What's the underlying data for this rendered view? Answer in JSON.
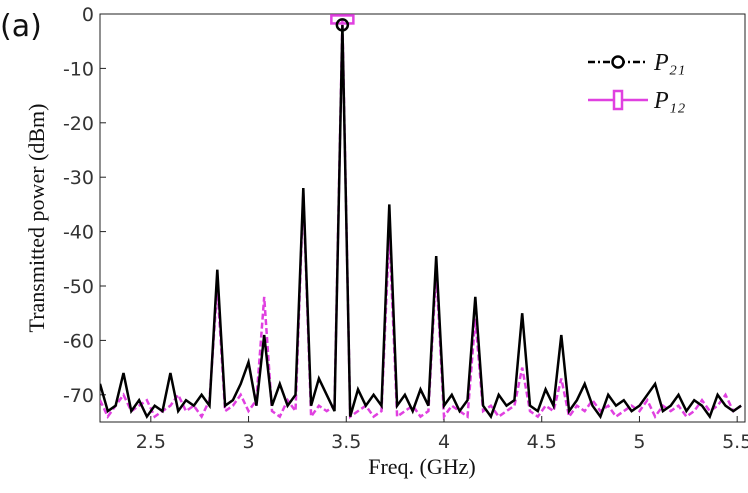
{
  "chart_data": {
    "type": "line",
    "annotation": "(a)",
    "x_label": "Freq. (GHz)",
    "y_label": "Transmitted power (dBm)",
    "legend": "upper right",
    "xlim": [
      2.24,
      5.54
    ],
    "ylim": [
      -75,
      0
    ],
    "xticks": [
      2.5,
      3,
      3.5,
      4,
      4.5,
      5,
      5.5
    ],
    "yticks": [
      -70,
      -60,
      -50,
      -40,
      -30,
      -20,
      -10,
      0
    ],
    "x": [
      2.24,
      2.28,
      2.32,
      2.36,
      2.4,
      2.44,
      2.48,
      2.52,
      2.56,
      2.6,
      2.64,
      2.68,
      2.72,
      2.76,
      2.8,
      2.84,
      2.88,
      2.92,
      2.96,
      3.0,
      3.04,
      3.08,
      3.12,
      3.16,
      3.2,
      3.24,
      3.28,
      3.32,
      3.36,
      3.4,
      3.44,
      3.48,
      3.52,
      3.56,
      3.6,
      3.64,
      3.68,
      3.72,
      3.76,
      3.8,
      3.84,
      3.88,
      3.92,
      3.96,
      4.0,
      4.04,
      4.08,
      4.12,
      4.16,
      4.2,
      4.24,
      4.28,
      4.32,
      4.36,
      4.4,
      4.44,
      4.48,
      4.52,
      4.56,
      4.6,
      4.64,
      4.68,
      4.72,
      4.76,
      4.8,
      4.84,
      4.88,
      4.92,
      4.96,
      5.0,
      5.04,
      5.08,
      5.12,
      5.16,
      5.2,
      5.24,
      5.28,
      5.32,
      5.36,
      5.4,
      5.44,
      5.48,
      5.52
    ],
    "series": [
      {
        "name": "P₂₁",
        "color": "#000000",
        "marker": "circle",
        "values": [
          -68,
          -73,
          -72,
          -66,
          -73,
          -71,
          -74,
          -72,
          -73,
          -66,
          -73,
          -71,
          -72,
          -70,
          -72,
          -47,
          -72,
          -71,
          -68,
          -64,
          -72,
          -59,
          -72,
          -68,
          -72,
          -70,
          -32,
          -72,
          -67,
          -70,
          -73,
          -2,
          -74,
          -69,
          -72,
          -70,
          -72,
          -35,
          -72,
          -70,
          -73,
          -69,
          -72,
          -44.5,
          -72,
          -70,
          -73,
          -71,
          -52,
          -72,
          -74,
          -70,
          -72,
          -71,
          -55,
          -72,
          -73,
          -69,
          -72,
          -59,
          -73,
          -71,
          -68,
          -72,
          -74,
          -70,
          -72,
          -71,
          -73,
          -72,
          -70,
          -68,
          -73,
          -72,
          -70,
          -73,
          -71,
          -72,
          -74,
          -70,
          -72,
          -73,
          -72
        ]
      },
      {
        "name": "P₁₂",
        "color": "#e040e0",
        "marker": "square",
        "values": [
          -71,
          -74,
          -72,
          -70,
          -73,
          -72,
          -71,
          -74,
          -73,
          -72,
          -70,
          -73,
          -72,
          -74,
          -71,
          -50,
          -73,
          -72,
          -70,
          -73,
          -71,
          -52,
          -73,
          -74,
          -71,
          -73,
          -33,
          -74,
          -72,
          -73,
          -72,
          -1,
          -74,
          -73,
          -72,
          -74,
          -73,
          -40,
          -74,
          -73,
          -72,
          -74,
          -73,
          -47,
          -74,
          -72,
          -73,
          -74,
          -56,
          -73,
          -72,
          -74,
          -73,
          -72,
          -65,
          -73,
          -74,
          -72,
          -73,
          -67,
          -74,
          -72,
          -73,
          -71,
          -73,
          -72,
          -74,
          -73,
          -72,
          -73,
          -71,
          -74,
          -72,
          -73,
          -72,
          -74,
          -73,
          -71,
          -73,
          -72,
          -70,
          -73,
          -72
        ]
      }
    ]
  }
}
